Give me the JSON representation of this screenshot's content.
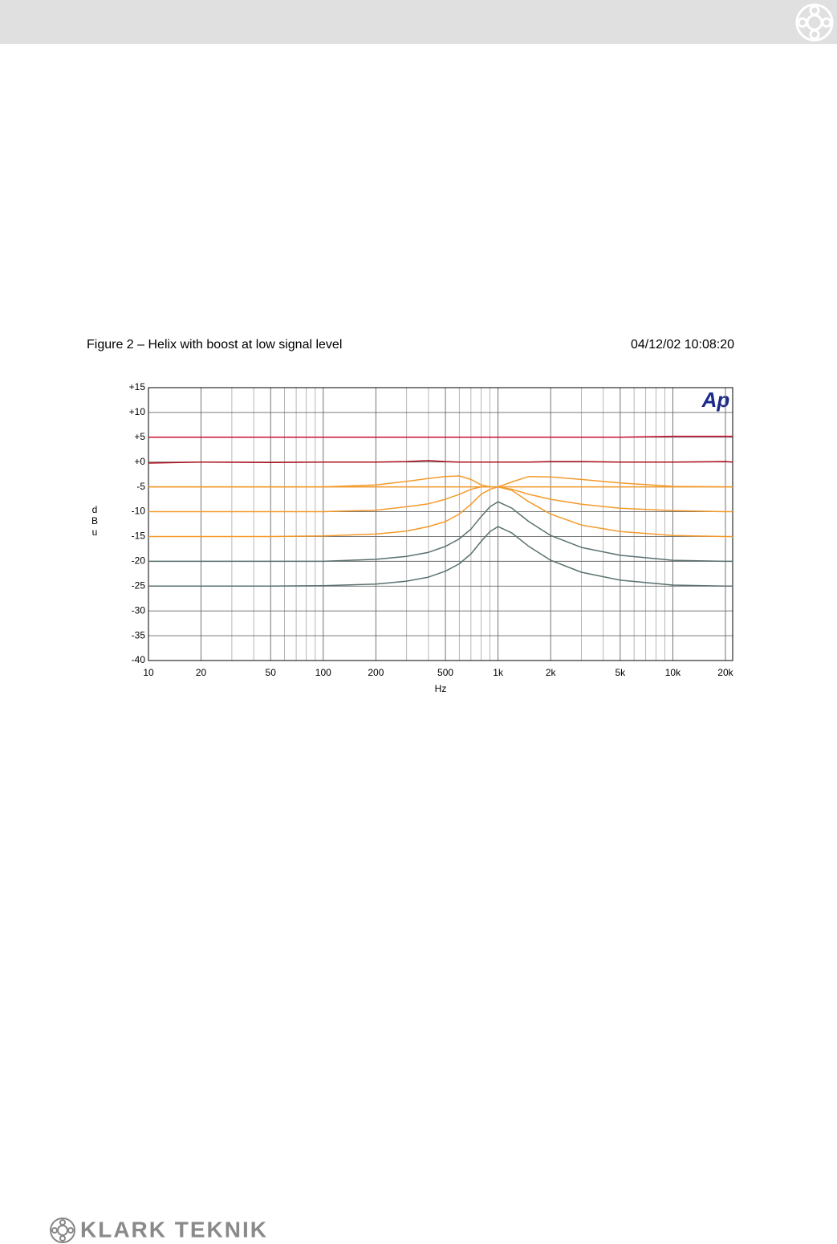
{
  "page": {
    "footer_brand": "KLARK TEKNIK"
  },
  "chart_data": {
    "type": "line",
    "title": "Figure 2 – Helix with boost at low signal level",
    "subtitle": "04/12/02 10:08:20",
    "watermark": "Ap",
    "x_label": "Hz",
    "y_label": "dBu",
    "log_x": true,
    "grid": true,
    "xlim": [
      10,
      22000
    ],
    "ylim": [
      -40,
      15
    ],
    "xticks": [
      10,
      20,
      50,
      100,
      200,
      500,
      {
        "value": 1000,
        "label": "1k"
      },
      {
        "value": 2000,
        "label": "2k"
      },
      {
        "value": 5000,
        "label": "5k"
      },
      {
        "value": 10000,
        "label": "10k"
      },
      {
        "value": 20000,
        "label": "20k"
      }
    ],
    "minor_xgrid": [
      30,
      40,
      60,
      70,
      80,
      90,
      300,
      400,
      600,
      700,
      800,
      900,
      3000,
      4000,
      6000,
      7000,
      8000,
      9000
    ],
    "yticks": [
      {
        "value": 15,
        "label": "+15"
      },
      {
        "value": 10,
        "label": "+10"
      },
      {
        "value": 5,
        "label": "+5"
      },
      {
        "value": 0,
        "label": "+0"
      },
      -5,
      -10,
      -15,
      -20,
      -25,
      -30,
      -35,
      -40
    ],
    "x": [
      10,
      20,
      50,
      100,
      200,
      300,
      400,
      500,
      600,
      700,
      800,
      900,
      1000,
      1200,
      1500,
      2000,
      3000,
      5000,
      10000,
      20000,
      22000
    ],
    "series": [
      {
        "color": "#c8102e",
        "values": [
          5,
          5,
          5,
          5,
          5,
          5,
          5,
          5,
          5,
          5,
          5,
          5,
          5,
          5,
          5,
          5,
          5,
          5,
          5.2,
          5.2,
          5.2
        ]
      },
      {
        "color": "#b0101e",
        "values": [
          -0.2,
          0,
          -0.1,
          0,
          0,
          0.1,
          0.3,
          0.1,
          0,
          0,
          0,
          0,
          0,
          0,
          0,
          0.1,
          0.1,
          0,
          0,
          0.1,
          0
        ]
      },
      {
        "color": "#f39a2b",
        "values": [
          -5,
          -5,
          -5,
          -5,
          -4.6,
          -3.9,
          -3.3,
          -2.9,
          -2.8,
          -3.5,
          -4.6,
          -5,
          -5,
          -5,
          -5,
          -5,
          -5,
          -5,
          -5,
          -5,
          -5
        ]
      },
      {
        "color": "#f39a2b",
        "values": [
          -5,
          -5,
          -5,
          -5,
          -5,
          -5,
          -5,
          -5,
          -5,
          -5,
          -5,
          -5,
          -5,
          -4,
          -2.9,
          -3,
          -3.5,
          -4.2,
          -4.9,
          -5,
          -5
        ]
      },
      {
        "color": "#f39a2b",
        "values": [
          -10,
          -10,
          -10,
          -10,
          -9.7,
          -9,
          -8.4,
          -7.5,
          -6.5,
          -5.5,
          -5,
          -5,
          -5,
          -5.5,
          -6.5,
          -7.5,
          -8.5,
          -9.3,
          -9.8,
          -10,
          -10
        ]
      },
      {
        "color": "#f39a2b",
        "values": [
          -15,
          -15,
          -15,
          -14.9,
          -14.5,
          -13.9,
          -13,
          -12,
          -10.5,
          -8.5,
          -6.5,
          -5.5,
          -5,
          -5.7,
          -8,
          -10.5,
          -12.7,
          -14,
          -14.8,
          -15,
          -15
        ]
      },
      {
        "color": "#5a7070",
        "values": [
          -20,
          -20,
          -20,
          -20,
          -19.6,
          -19,
          -18.2,
          -17,
          -15.5,
          -13.5,
          -11,
          -9,
          -8,
          -9.3,
          -12,
          -14.8,
          -17.2,
          -18.8,
          -19.8,
          -20,
          -20
        ]
      },
      {
        "color": "#5a7070",
        "values": [
          -25,
          -25,
          -25,
          -24.9,
          -24.6,
          -24,
          -23.2,
          -22,
          -20.5,
          -18.5,
          -16,
          -14,
          -13,
          -14.3,
          -17,
          -19.8,
          -22.2,
          -23.8,
          -24.8,
          -25,
          -25
        ]
      }
    ]
  }
}
